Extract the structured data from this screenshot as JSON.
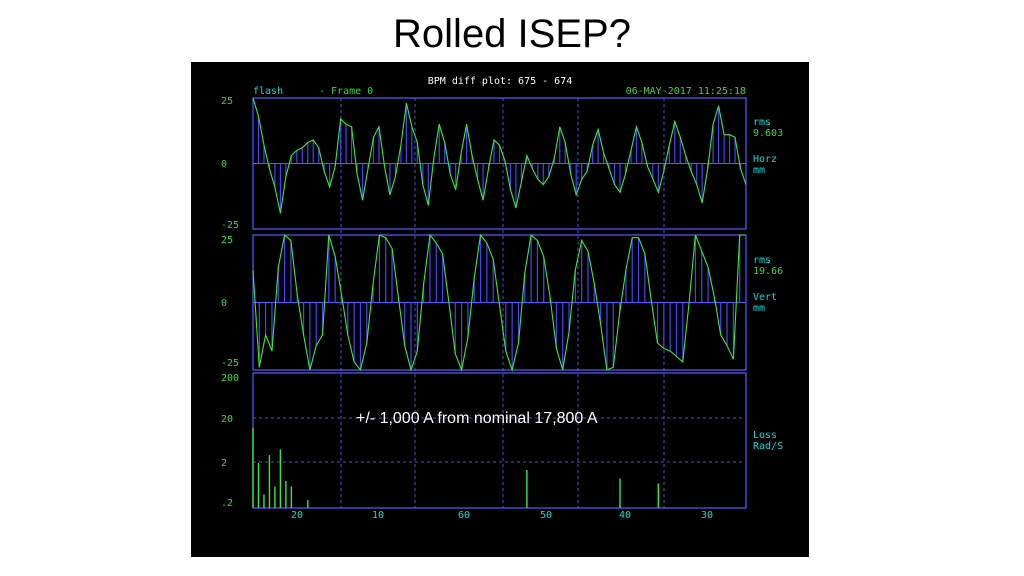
{
  "slide": {
    "title": "Rolled ISEP?"
  },
  "header": {
    "plot_title": "BPM diff plot:  675 - 674",
    "source": "flash",
    "frame": "- Frame 0",
    "timestamp": "06-MAY-2017 11:25:18"
  },
  "annotation": "+/- 1,000 A from nominal 17,800 A",
  "colors": {
    "background": "#000000",
    "frame": "#5a5aff",
    "trace": "#33ee33",
    "bars": "#4444ff",
    "label": "#33dd33",
    "cyan": "#00dddd",
    "grid": "#6666ff"
  },
  "chart_data": [
    {
      "type": "line",
      "panel": "horizontal",
      "ylim": [
        -25,
        25
      ],
      "y_tick_labels": [
        "25",
        "0",
        "-25"
      ],
      "side_labels": [
        "rms",
        "9.603",
        "Horz",
        "mm"
      ],
      "values": [
        25,
        18,
        7,
        -2,
        -9,
        -19,
        -5,
        3,
        5,
        6,
        8,
        9,
        6,
        -3,
        -9,
        -1,
        17,
        15,
        14,
        -4,
        -14,
        -2,
        10,
        14,
        -1,
        -12,
        -5,
        7,
        23,
        14,
        8,
        -8,
        -16,
        2,
        15,
        8,
        -4,
        -10,
        4,
        15,
        3,
        -6,
        -14,
        -2,
        9,
        7,
        1,
        -10,
        -17,
        -7,
        3,
        -2,
        -6,
        -8,
        -5,
        2,
        14,
        8,
        -4,
        -12,
        -6,
        -3,
        7,
        13,
        4,
        -2,
        -8,
        -11,
        -4,
        5,
        14,
        8,
        -1,
        -6,
        -11,
        -3,
        7,
        16,
        10,
        3,
        -3,
        -8,
        -15,
        -2,
        15,
        22,
        11,
        11,
        10,
        -2,
        -8
      ]
    },
    {
      "type": "line",
      "panel": "vertical",
      "ylim": [
        -25,
        25
      ],
      "y_tick_labels": [
        "25",
        "0",
        "-25"
      ],
      "side_labels": [
        "rms",
        "19.66",
        "Vert",
        "mm"
      ],
      "values": [
        12,
        -24,
        -12,
        -18,
        13,
        25,
        23,
        3,
        -12,
        -25,
        -16,
        -12,
        25,
        17,
        3,
        -12,
        -22,
        -25,
        -15,
        7,
        25,
        24,
        20,
        2,
        -16,
        -25,
        -18,
        7,
        25,
        22,
        18,
        0,
        -19,
        -25,
        -13,
        9,
        25,
        22,
        16,
        -1,
        -18,
        -25,
        -15,
        11,
        25,
        23,
        17,
        2,
        -17,
        -25,
        -11,
        12,
        23,
        19,
        7,
        -8,
        -25,
        -24,
        -4,
        12,
        24,
        24,
        18,
        1,
        -15,
        -17,
        -18,
        -20,
        -22,
        0,
        25,
        19,
        13,
        2,
        -12,
        -16,
        -21,
        25,
        25
      ]
    },
    {
      "type": "bar",
      "panel": "loss",
      "scale": "log",
      "ylim": [
        0.2,
        200
      ],
      "y_tick_labels": [
        "200",
        "20",
        "2",
        ".2"
      ],
      "x_tick_labels": [
        "20",
        "10",
        "60",
        "50",
        "40",
        "30"
      ],
      "side_labels": [
        "Loss",
        "Rad/S"
      ],
      "bars": [
        {
          "x": 0,
          "y": 12
        },
        {
          "x": 1,
          "y": 2
        },
        {
          "x": 2,
          "y": 0.4
        },
        {
          "x": 3,
          "y": 3
        },
        {
          "x": 4,
          "y": 0.6
        },
        {
          "x": 5,
          "y": 4
        },
        {
          "x": 6,
          "y": 0.8
        },
        {
          "x": 7,
          "y": 0.6
        },
        {
          "x": 10,
          "y": 0.3
        },
        {
          "x": 50,
          "y": 1.4
        },
        {
          "x": 67,
          "y": 0.9
        },
        {
          "x": 74,
          "y": 0.7
        }
      ],
      "bar_count": 91
    }
  ]
}
